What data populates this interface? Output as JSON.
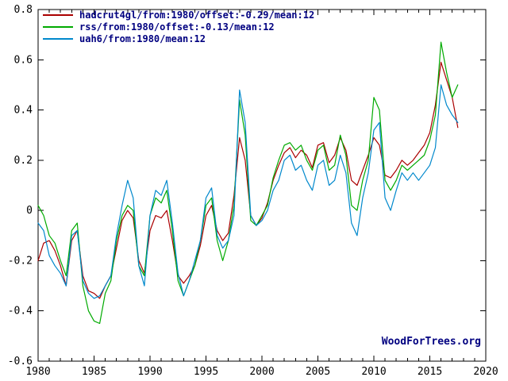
{
  "watermark": "WoodForTrees.org",
  "colors": {
    "axis": "#000000",
    "legend_text": "#000080",
    "background": "#ffffff"
  },
  "chart_data": {
    "type": "line",
    "title": "",
    "xlabel": "",
    "ylabel": "",
    "xlim": [
      1980,
      2020
    ],
    "ylim": [
      -0.6,
      0.8
    ],
    "x_ticks": [
      1980,
      1985,
      1990,
      1995,
      2000,
      2005,
      2010,
      2015,
      2020
    ],
    "y_ticks": [
      -0.6,
      -0.4,
      -0.2,
      0,
      0.2,
      0.4,
      0.6,
      0.8
    ],
    "grid": false,
    "legend_position": "top-left",
    "x": [
      1980,
      1980.5,
      1981,
      1981.5,
      1982,
      1982.5,
      1983,
      1983.5,
      1984,
      1984.5,
      1985,
      1985.5,
      1986,
      1986.5,
      1987,
      1987.5,
      1988,
      1988.5,
      1989,
      1989.5,
      1990,
      1990.5,
      1991,
      1991.5,
      1992,
      1992.5,
      1993,
      1993.5,
      1994,
      1994.5,
      1995,
      1995.5,
      1996,
      1996.5,
      1997,
      1997.5,
      1998,
      1998.5,
      1999,
      1999.5,
      2000,
      2000.5,
      2001,
      2001.5,
      2002,
      2002.5,
      2003,
      2003.5,
      2004,
      2004.5,
      2005,
      2005.5,
      2006,
      2006.5,
      2007,
      2007.5,
      2008,
      2008.5,
      2009,
      2009.5,
      2010,
      2010.5,
      2011,
      2011.5,
      2012,
      2012.5,
      2013,
      2013.5,
      2014,
      2014.5,
      2015,
      2015.5,
      2016,
      2016.5,
      2017,
      2017.5
    ],
    "series": [
      {
        "name": "hadcrut4gl/from:1980/offset:-0.29/mean:12",
        "color": "#aa0000",
        "values": [
          -0.2,
          -0.13,
          -0.12,
          -0.16,
          -0.22,
          -0.3,
          -0.12,
          -0.08,
          -0.26,
          -0.32,
          -0.33,
          -0.35,
          -0.3,
          -0.26,
          -0.15,
          -0.04,
          0.0,
          -0.03,
          -0.2,
          -0.25,
          -0.08,
          -0.02,
          -0.03,
          0.0,
          -0.12,
          -0.26,
          -0.29,
          -0.26,
          -0.22,
          -0.14,
          -0.02,
          0.02,
          -0.08,
          -0.12,
          -0.09,
          0.06,
          0.29,
          0.2,
          -0.02,
          -0.06,
          -0.03,
          0.03,
          0.12,
          0.18,
          0.23,
          0.25,
          0.21,
          0.24,
          0.22,
          0.17,
          0.26,
          0.27,
          0.19,
          0.22,
          0.29,
          0.24,
          0.12,
          0.1,
          0.16,
          0.22,
          0.29,
          0.26,
          0.14,
          0.13,
          0.16,
          0.2,
          0.18,
          0.2,
          0.23,
          0.26,
          0.31,
          0.42,
          0.59,
          0.52,
          0.45,
          0.33
        ]
      },
      {
        "name": "rss/from:1980/offset:-0.13/mean:12",
        "color": "#00aa00",
        "values": [
          0.02,
          -0.02,
          -0.1,
          -0.13,
          -0.2,
          -0.26,
          -0.08,
          -0.05,
          -0.3,
          -0.4,
          -0.44,
          -0.45,
          -0.33,
          -0.28,
          -0.12,
          -0.02,
          0.02,
          0.0,
          -0.22,
          -0.26,
          -0.02,
          0.05,
          0.03,
          0.08,
          -0.08,
          -0.28,
          -0.34,
          -0.28,
          -0.22,
          -0.12,
          0.02,
          0.05,
          -0.12,
          -0.2,
          -0.12,
          0.02,
          0.44,
          0.3,
          -0.04,
          -0.06,
          -0.02,
          0.02,
          0.13,
          0.2,
          0.26,
          0.27,
          0.24,
          0.26,
          0.2,
          0.16,
          0.24,
          0.26,
          0.16,
          0.18,
          0.3,
          0.22,
          0.02,
          0.0,
          0.12,
          0.2,
          0.45,
          0.4,
          0.12,
          0.08,
          0.12,
          0.18,
          0.16,
          0.18,
          0.2,
          0.22,
          0.28,
          0.38,
          0.67,
          0.55,
          0.45,
          0.5
        ]
      },
      {
        "name": "uah6/from:1980/mean:12",
        "color": "#0088cc",
        "values": [
          -0.05,
          -0.08,
          -0.18,
          -0.22,
          -0.25,
          -0.3,
          -0.1,
          -0.08,
          -0.28,
          -0.33,
          -0.35,
          -0.34,
          -0.3,
          -0.26,
          -0.1,
          0.02,
          0.12,
          0.05,
          -0.22,
          -0.3,
          -0.02,
          0.08,
          0.06,
          0.12,
          -0.05,
          -0.25,
          -0.34,
          -0.28,
          -0.2,
          -0.12,
          0.05,
          0.09,
          -0.1,
          -0.15,
          -0.12,
          -0.02,
          0.48,
          0.35,
          -0.02,
          -0.06,
          -0.04,
          0.0,
          0.08,
          0.12,
          0.2,
          0.22,
          0.16,
          0.18,
          0.12,
          0.08,
          0.18,
          0.2,
          0.1,
          0.12,
          0.22,
          0.15,
          -0.05,
          -0.1,
          0.05,
          0.15,
          0.32,
          0.35,
          0.05,
          0.0,
          0.08,
          0.15,
          0.12,
          0.15,
          0.12,
          0.15,
          0.18,
          0.25,
          0.5,
          0.42,
          0.38,
          0.35
        ]
      }
    ]
  }
}
